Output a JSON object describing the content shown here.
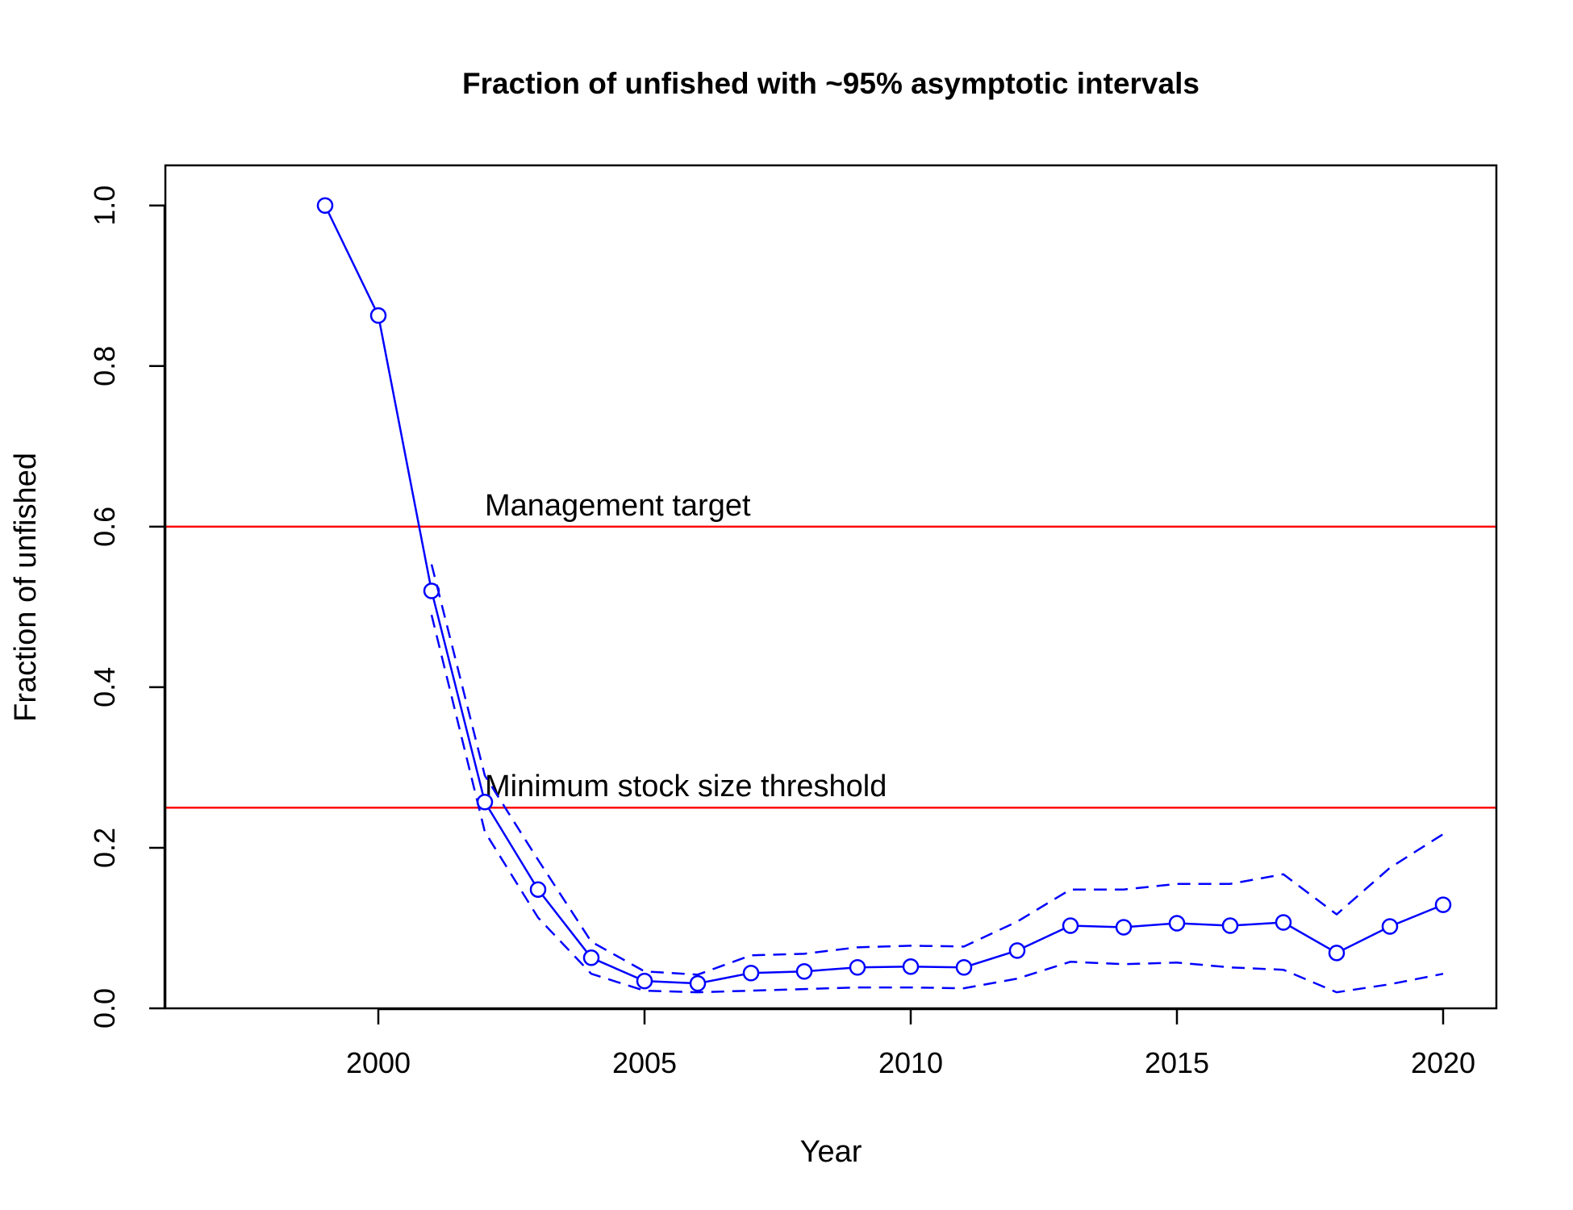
{
  "chart_data": {
    "type": "line",
    "title": "Fraction of unfished with ~95% asymptotic intervals",
    "xlabel": "Year",
    "ylabel": "Fraction of unfished",
    "xlim": [
      1996,
      2021
    ],
    "ylim": [
      0,
      1.05
    ],
    "x_ticks": [
      2000,
      2005,
      2010,
      2015,
      2020
    ],
    "y_ticks": [
      "0.0",
      "0.2",
      "0.4",
      "0.6",
      "0.8",
      "1.0"
    ],
    "grid": false,
    "series_color": "#0000ff",
    "reference_color": "#ff0000",
    "x": [
      1999,
      2000,
      2001,
      2002,
      2003,
      2004,
      2005,
      2006,
      2007,
      2008,
      2009,
      2010,
      2011,
      2012,
      2013,
      2014,
      2015,
      2016,
      2017,
      2018,
      2019,
      2020
    ],
    "series": [
      {
        "style": "solid-with-circles",
        "values": [
          1.0,
          0.863,
          0.52,
          0.257,
          0.148,
          0.063,
          0.034,
          0.031,
          0.044,
          0.046,
          0.051,
          0.052,
          0.051,
          0.072,
          0.103,
          0.101,
          0.106,
          0.103,
          0.107,
          0.069,
          0.102,
          0.129
        ]
      },
      {
        "style": "dashed",
        "values": [
          null,
          null,
          0.553,
          0.29,
          0.185,
          0.083,
          0.046,
          0.042,
          0.066,
          0.068,
          0.076,
          0.078,
          0.077,
          0.108,
          0.148,
          0.148,
          0.155,
          0.155,
          0.167,
          0.117,
          0.175,
          0.217
        ]
      },
      {
        "style": "dashed",
        "values": [
          null,
          null,
          0.49,
          0.22,
          0.113,
          0.043,
          0.022,
          0.02,
          0.022,
          0.024,
          0.026,
          0.026,
          0.025,
          0.037,
          0.058,
          0.055,
          0.057,
          0.051,
          0.048,
          0.02,
          0.03,
          0.043
        ]
      }
    ],
    "reference_lines": [
      {
        "y": 0.6,
        "label": "Management target"
      },
      {
        "y": 0.25,
        "label": "Minimum stock size threshold"
      }
    ]
  }
}
